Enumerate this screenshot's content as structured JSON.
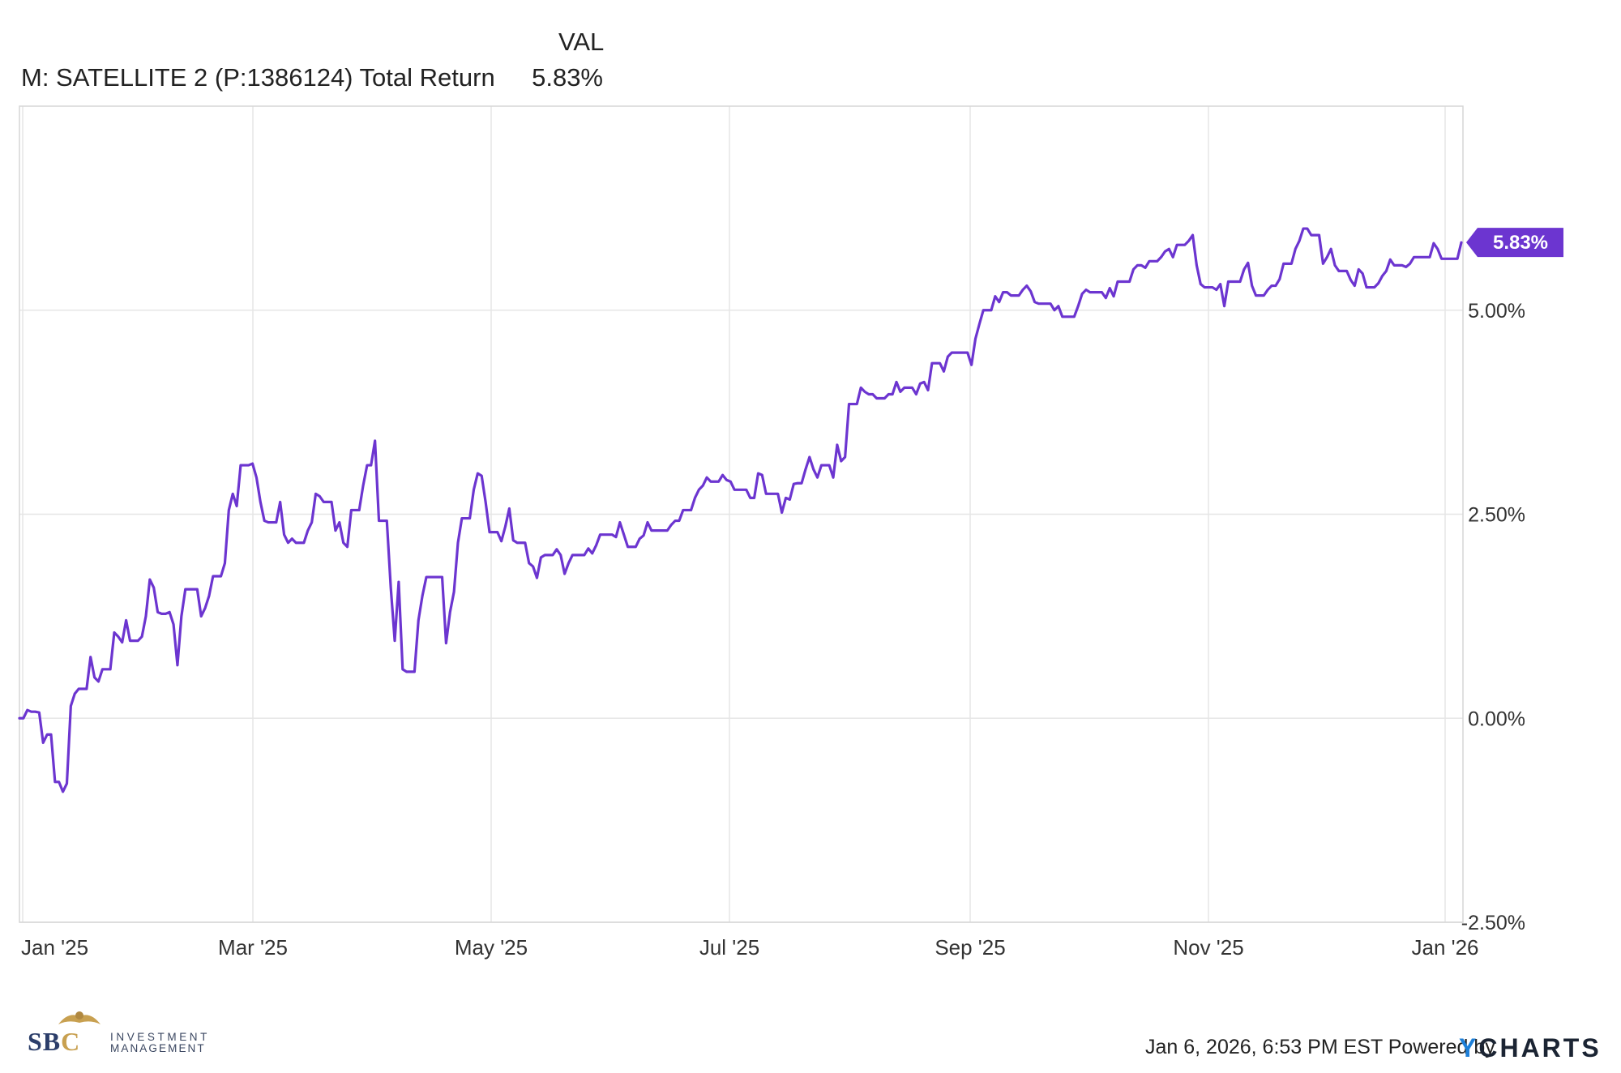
{
  "legend": {
    "column_header": "VAL",
    "series_label": "M: SATELLITE 2 (P:1386124) Total Return",
    "series_value": "5.83%"
  },
  "footer": {
    "timestamp": "Jan 6, 2026, 6:53 PM EST Powered by",
    "ycharts_y": "Y",
    "ycharts_rest": "CHARTS",
    "sbc_s": "S",
    "sbc_b": "B",
    "sbc_c": "C",
    "sbc_line1": "INVESTMENT",
    "sbc_line2": "MANAGEMENT"
  },
  "colors": {
    "line": "#6c35d0",
    "grid": "#e6e6e6",
    "axis_text": "#333333",
    "callout_bg": "#6c35d0",
    "callout_text": "#ffffff"
  },
  "chart_data": {
    "type": "line",
    "series": [
      {
        "name": "M: SATELLITE 2 (P:1386124) Total Return",
        "last_label": "5.83%",
        "values": [
          0.0,
          0.0,
          0.1,
          0.08,
          0.08,
          0.07,
          -0.3,
          -0.2,
          -0.2,
          -0.78,
          -0.78,
          -0.9,
          -0.8,
          0.15,
          0.3,
          0.36,
          0.36,
          0.36,
          0.75,
          0.5,
          0.45,
          0.6,
          0.6,
          0.6,
          1.05,
          1.0,
          0.93,
          1.2,
          0.95,
          0.95,
          0.95,
          1.0,
          1.25,
          1.7,
          1.6,
          1.3,
          1.28,
          1.28,
          1.3,
          1.15,
          0.65,
          1.25,
          1.58,
          1.58,
          1.58,
          1.58,
          1.25,
          1.35,
          1.5,
          1.74,
          1.74,
          1.74,
          1.9,
          2.55,
          2.75,
          2.6,
          3.1,
          3.1,
          3.1,
          3.12,
          2.95,
          2.65,
          2.42,
          2.4,
          2.4,
          2.4,
          2.65,
          2.25,
          2.15,
          2.2,
          2.15,
          2.15,
          2.15,
          2.3,
          2.4,
          2.75,
          2.72,
          2.65,
          2.65,
          2.65,
          2.3,
          2.4,
          2.15,
          2.1,
          2.55,
          2.55,
          2.55,
          2.85,
          3.1,
          3.1,
          3.4,
          2.42,
          2.42,
          2.42,
          1.6,
          0.95,
          1.67,
          0.6,
          0.57,
          0.57,
          0.57,
          1.2,
          1.5,
          1.73,
          1.73,
          1.73,
          1.73,
          1.73,
          0.92,
          1.3,
          1.55,
          2.15,
          2.45,
          2.45,
          2.45,
          2.8,
          3.0,
          2.97,
          2.65,
          2.28,
          2.28,
          2.28,
          2.17,
          2.35,
          2.57,
          2.18,
          2.15,
          2.15,
          2.15,
          1.9,
          1.86,
          1.72,
          1.97,
          2.0,
          2.0,
          2.0,
          2.07,
          2.0,
          1.77,
          1.9,
          2.0,
          2.0,
          2.0,
          2.0,
          2.08,
          2.02,
          2.12,
          2.25,
          2.25,
          2.25,
          2.25,
          2.22,
          2.4,
          2.25,
          2.1,
          2.1,
          2.1,
          2.2,
          2.24,
          2.4,
          2.3,
          2.3,
          2.3,
          2.3,
          2.3,
          2.37,
          2.42,
          2.42,
          2.55,
          2.55,
          2.55,
          2.7,
          2.8,
          2.85,
          2.95,
          2.9,
          2.9,
          2.9,
          2.98,
          2.92,
          2.9,
          2.8,
          2.8,
          2.8,
          2.8,
          2.7,
          2.7,
          3.0,
          2.98,
          2.75,
          2.75,
          2.75,
          2.75,
          2.52,
          2.7,
          2.68,
          2.87,
          2.88,
          2.88,
          3.05,
          3.2,
          3.05,
          2.95,
          3.1,
          3.1,
          3.1,
          2.95,
          3.35,
          3.15,
          3.2,
          3.85,
          3.85,
          3.85,
          4.05,
          4.0,
          3.97,
          3.97,
          3.92,
          3.92,
          3.92,
          3.97,
          3.97,
          4.12,
          4.0,
          4.05,
          4.05,
          4.05,
          3.97,
          4.1,
          4.12,
          4.02,
          4.35,
          4.35,
          4.35,
          4.25,
          4.43,
          4.48,
          4.48,
          4.48,
          4.48,
          4.48,
          4.33,
          4.65,
          4.83,
          5.0,
          5.0,
          5.0,
          5.17,
          5.1,
          5.22,
          5.22,
          5.18,
          5.18,
          5.18,
          5.25,
          5.3,
          5.23,
          5.1,
          5.08,
          5.08,
          5.08,
          5.08,
          5.0,
          5.05,
          4.92,
          4.92,
          4.92,
          4.92,
          5.05,
          5.2,
          5.25,
          5.22,
          5.22,
          5.22,
          5.22,
          5.15,
          5.27,
          5.17,
          5.35,
          5.35,
          5.35,
          5.35,
          5.5,
          5.55,
          5.55,
          5.52,
          5.6,
          5.6,
          5.6,
          5.65,
          5.72,
          5.75,
          5.65,
          5.8,
          5.8,
          5.8,
          5.85,
          5.92,
          5.55,
          5.32,
          5.28,
          5.28,
          5.28,
          5.25,
          5.32,
          5.05,
          5.35,
          5.35,
          5.35,
          5.35,
          5.5,
          5.58,
          5.3,
          5.18,
          5.18,
          5.18,
          5.25,
          5.3,
          5.3,
          5.38,
          5.57,
          5.57,
          5.57,
          5.75,
          5.85,
          6.0,
          6.0,
          5.92,
          5.92,
          5.92,
          5.57,
          5.65,
          5.75,
          5.55,
          5.48,
          5.48,
          5.48,
          5.37,
          5.3,
          5.5,
          5.45,
          5.28,
          5.28,
          5.28,
          5.33,
          5.42,
          5.48,
          5.62,
          5.55,
          5.55,
          5.55,
          5.53,
          5.57,
          5.65,
          5.65,
          5.65,
          5.65,
          5.65,
          5.82,
          5.75,
          5.63,
          5.63,
          5.63,
          5.63,
          5.63,
          5.83
        ]
      }
    ],
    "x_tick_labels": [
      "Jan '25",
      "Mar '25",
      "May '25",
      "Jul '25",
      "Sep '25",
      "Nov '25",
      "Jan '26"
    ],
    "y_tick_labels": [
      "5.00%",
      "2.50%",
      "0.00%",
      "-2.50%"
    ],
    "y_ticks": [
      5.0,
      2.5,
      0.0,
      -2.5
    ],
    "ylim": [
      -2.5,
      7.5
    ],
    "title": "",
    "xlabel": "",
    "ylabel": "",
    "grid": true,
    "legend_position": "top-left"
  }
}
